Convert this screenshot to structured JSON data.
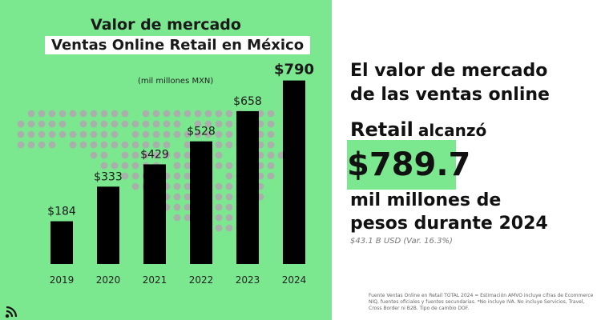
{
  "chart_data": {
    "type": "bar",
    "title": "Valor de mercado",
    "subtitle": "Ventas Online Retail en México",
    "unit_label": "(mil millones MXN)",
    "categories": [
      "2019",
      "2020",
      "2021",
      "2022",
      "2023",
      "2024"
    ],
    "values": [
      184,
      333,
      429,
      528,
      658,
      790
    ],
    "value_labels": [
      "$184",
      "$333",
      "$429",
      "$528",
      "$658",
      "$790"
    ],
    "ylim": [
      0,
      850
    ],
    "bar_color": "#000000",
    "grid": false
  },
  "headline": {
    "line1": "El valor de mercado",
    "line2": "de las ventas online",
    "retail": "Retail",
    "alcanzo": "alcanzó",
    "value": "$789.7",
    "desc_line1": "mil millones de",
    "desc_line2": "pesos durante 2024",
    "usd_note": "$43.1 B USD (Var. 16.3%)"
  },
  "source_note": "Fuente Ventas Online en Retail TOTAL 2024 = Estimación AMVO incluye cifras de Ecommerce NIQ, fuentes oficiales y fuentes secundarias. *No incluye IVA. No incluye Servicios, Travel, Cross Border ni B2B. Tipo de cambio DOF.",
  "colors": {
    "accent_green": "#7BE78F",
    "dot_grey": "#a9b0ab"
  },
  "icons": {
    "logo": "signal-logo-icon"
  }
}
